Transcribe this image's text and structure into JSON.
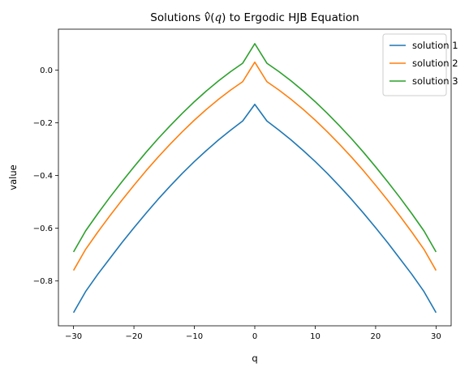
{
  "chart_data": {
    "type": "line",
    "title_parts": [
      "Solutions ",
      "v",
      "(",
      "q",
      ") to Ergodic HJB Equation"
    ],
    "xlabel": "q",
    "ylabel": "value",
    "xlim": [
      -32.5,
      32.5
    ],
    "ylim": [
      -0.97,
      0.155
    ],
    "xticks": [
      -30,
      -20,
      -10,
      0,
      10,
      20,
      30
    ],
    "xtick_labels": [
      "−30",
      "−20",
      "−10",
      "0",
      "10",
      "20",
      "30"
    ],
    "yticks": [
      0.0,
      -0.2,
      -0.4,
      -0.6,
      -0.8
    ],
    "ytick_labels": [
      "0.0",
      "−0.2",
      "−0.4",
      "−0.6",
      "−0.8"
    ],
    "grid": false,
    "legend": "top-right",
    "x": [
      -30,
      -28,
      -26,
      -24,
      -22,
      -20,
      -18,
      -16,
      -14,
      -12,
      -10,
      -8,
      -6,
      -4,
      -2,
      0,
      2,
      4,
      6,
      8,
      10,
      12,
      14,
      16,
      18,
      20,
      22,
      24,
      26,
      28,
      30
    ],
    "series": [
      {
        "name": "solution 1",
        "color": "#1f77b4",
        "values": [
          -0.92,
          -0.84,
          -0.775,
          -0.715,
          -0.655,
          -0.598,
          -0.543,
          -0.49,
          -0.44,
          -0.392,
          -0.347,
          -0.305,
          -0.265,
          -0.228,
          -0.193,
          -0.13,
          -0.193,
          -0.228,
          -0.265,
          -0.305,
          -0.347,
          -0.392,
          -0.44,
          -0.49,
          -0.543,
          -0.598,
          -0.655,
          -0.715,
          -0.775,
          -0.84,
          -0.92
        ]
      },
      {
        "name": "solution 2",
        "color": "#ff7f0e",
        "values": [
          -0.76,
          -0.68,
          -0.615,
          -0.553,
          -0.494,
          -0.437,
          -0.382,
          -0.33,
          -0.281,
          -0.234,
          -0.19,
          -0.149,
          -0.111,
          -0.076,
          -0.044,
          0.03,
          -0.044,
          -0.076,
          -0.111,
          -0.149,
          -0.19,
          -0.234,
          -0.281,
          -0.33,
          -0.382,
          -0.437,
          -0.494,
          -0.553,
          -0.615,
          -0.68,
          -0.76
        ]
      },
      {
        "name": "solution 3",
        "color": "#2ca02c",
        "values": [
          -0.69,
          -0.61,
          -0.545,
          -0.483,
          -0.424,
          -0.367,
          -0.312,
          -0.26,
          -0.211,
          -0.164,
          -0.12,
          -0.079,
          -0.041,
          -0.006,
          0.026,
          0.1,
          0.026,
          -0.006,
          -0.041,
          -0.079,
          -0.12,
          -0.164,
          -0.211,
          -0.26,
          -0.312,
          -0.367,
          -0.424,
          -0.483,
          -0.545,
          -0.61,
          -0.69
        ]
      }
    ]
  }
}
